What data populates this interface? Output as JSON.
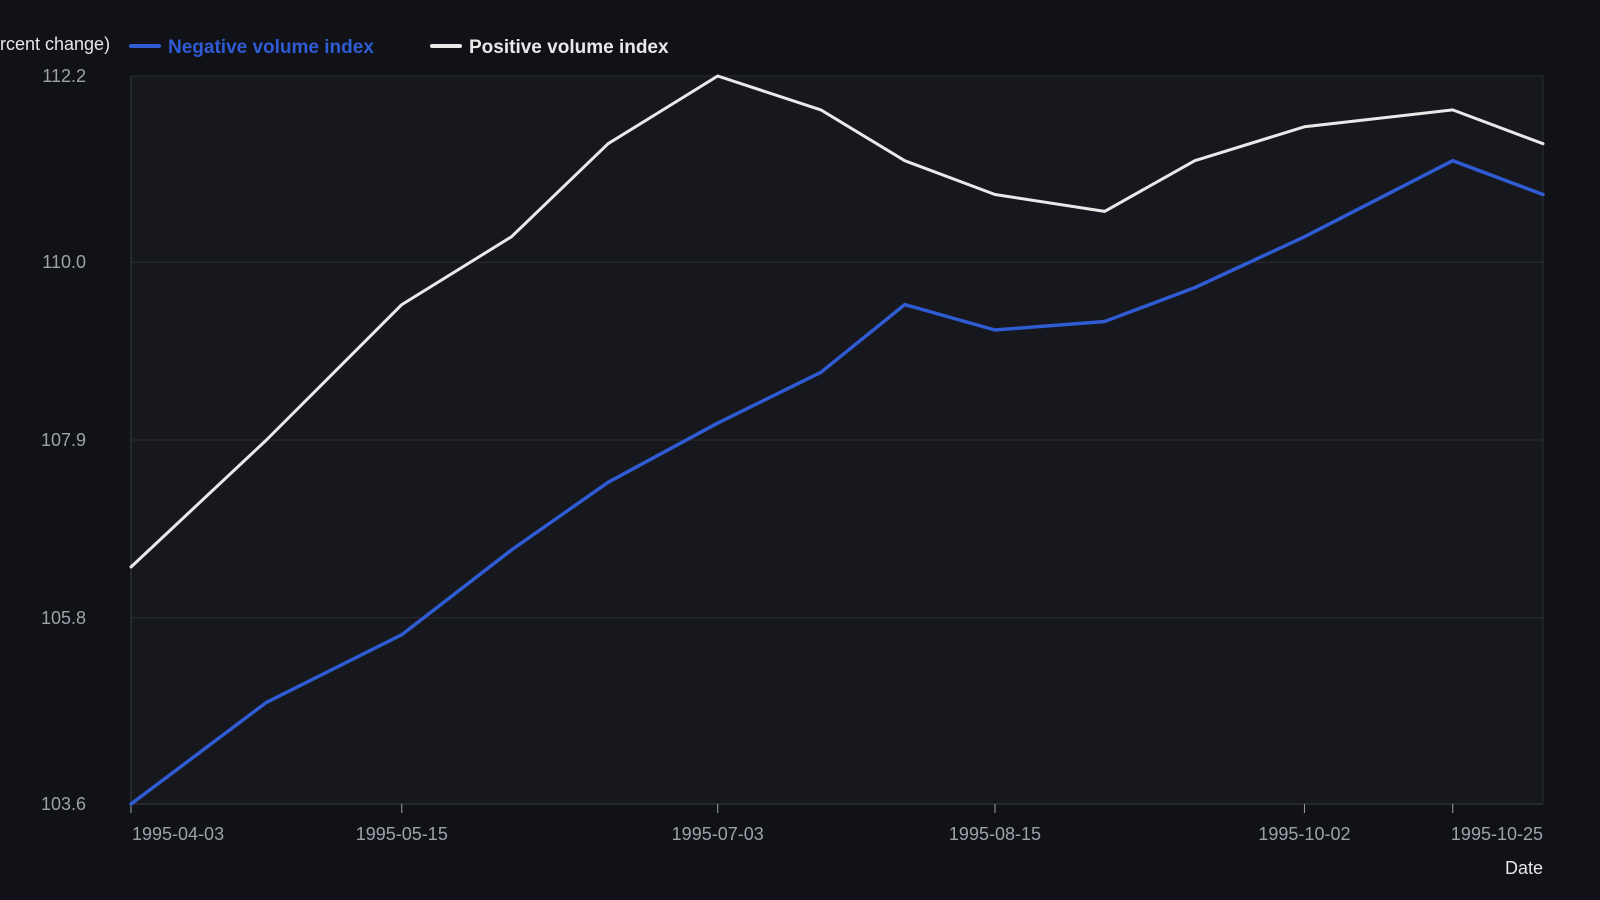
{
  "chart_data": {
    "type": "line",
    "title": "",
    "xlabel": "Date",
    "ylabel": "(percent change)",
    "ylabel_visible": "rcent change)",
    "x_type": "date",
    "xlim": [
      "1995-04-03",
      "1995-11-08"
    ],
    "ylim": [
      103.6,
      112.2
    ],
    "yticks": [
      "103.6",
      "105.8",
      "107.9",
      "110.0",
      "112.2"
    ],
    "xticks": [
      "1995-04-03",
      "1995-05-15",
      "1995-07-03",
      "1995-08-15",
      "1995-10-02",
      "1995-10-25"
    ],
    "grid": true,
    "legend_position": "top-left",
    "x": [
      "1995-04-03",
      "1995-04-24",
      "1995-05-15",
      "1995-06-01",
      "1995-06-16",
      "1995-07-03",
      "1995-07-19",
      "1995-08-01",
      "1995-08-15",
      "1995-09-01",
      "1995-09-15",
      "1995-10-02",
      "1995-10-25",
      "1995-11-08"
    ],
    "series": [
      {
        "name": "Negative volume index",
        "color": "#2f5bd3",
        "values": [
          103.6,
          104.8,
          105.6,
          106.6,
          107.4,
          108.1,
          108.7,
          109.5,
          109.2,
          109.3,
          109.7,
          110.3,
          111.2,
          110.8
        ]
      },
      {
        "name": "Positive volume index",
        "color": "#e9e9e9",
        "values": [
          106.4,
          107.9,
          109.5,
          110.3,
          111.4,
          112.2,
          111.8,
          111.2,
          110.8,
          110.6,
          111.2,
          111.6,
          111.8,
          111.4
        ]
      }
    ]
  }
}
